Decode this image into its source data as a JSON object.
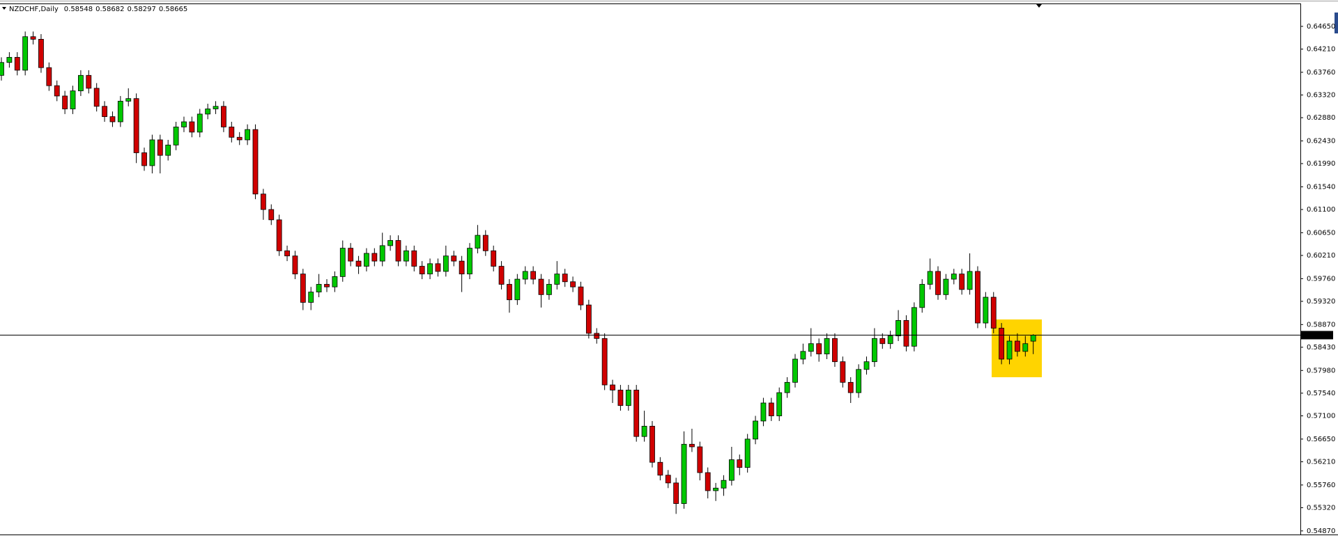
{
  "chart_data": {
    "type": "candlestick",
    "title": "NZDCHF,Daily",
    "up_color": "#00c800",
    "down_color": "#d00000",
    "ylim": [
      0.548,
      0.6508
    ],
    "yticks": [
      {
        "value": 0.6465,
        "label": "0.64650"
      },
      {
        "value": 0.6421,
        "label": "0.64210"
      },
      {
        "value": 0.6376,
        "label": "0.63760"
      },
      {
        "value": 0.6332,
        "label": "0.63320"
      },
      {
        "value": 0.6288,
        "label": "0.62880"
      },
      {
        "value": 0.6243,
        "label": "0.62430"
      },
      {
        "value": 0.6199,
        "label": "0.61990"
      },
      {
        "value": 0.6154,
        "label": "0.61540"
      },
      {
        "value": 0.611,
        "label": "0.61100"
      },
      {
        "value": 0.6065,
        "label": "0.60650"
      },
      {
        "value": 0.6021,
        "label": "0.60210"
      },
      {
        "value": 0.5976,
        "label": "0.59760"
      },
      {
        "value": 0.5932,
        "label": "0.59320"
      },
      {
        "value": 0.5887,
        "label": "0.58870"
      },
      {
        "value": 0.5843,
        "label": "0.58430"
      },
      {
        "value": 0.5798,
        "label": "0.57980"
      },
      {
        "value": 0.5754,
        "label": "0.57540"
      },
      {
        "value": 0.571,
        "label": "0.57100"
      },
      {
        "value": 0.5665,
        "label": "0.56650"
      },
      {
        "value": 0.5621,
        "label": "0.56210"
      },
      {
        "value": 0.5576,
        "label": "0.55760"
      },
      {
        "value": 0.5532,
        "label": "0.55320"
      },
      {
        "value": 0.5487,
        "label": "0.54870"
      }
    ],
    "open": [
      0.637,
      0.6395,
      0.6405,
      0.638,
      0.6445,
      0.644,
      0.6385,
      0.635,
      0.633,
      0.6305,
      0.634,
      0.637,
      0.6345,
      0.631,
      0.629,
      0.628,
      0.632,
      0.6325,
      0.622,
      0.6195,
      0.6245,
      0.6215,
      0.6235,
      0.627,
      0.628,
      0.626,
      0.6295,
      0.6305,
      0.631,
      0.627,
      0.625,
      0.6245,
      0.6265,
      0.614,
      0.611,
      0.609,
      0.603,
      0.602,
      0.5985,
      0.593,
      0.595,
      0.5965,
      0.596,
      0.598,
      0.6035,
      0.601,
      0.6,
      0.6025,
      0.601,
      0.604,
      0.605,
      0.601,
      0.603,
      0.6,
      0.5985,
      0.6005,
      0.599,
      0.602,
      0.601,
      0.5985,
      0.6035,
      0.606,
      0.603,
      0.6,
      0.5965,
      0.5935,
      0.5975,
      0.599,
      0.5975,
      0.5945,
      0.5965,
      0.5985,
      0.597,
      0.596,
      0.5925,
      0.587,
      0.586,
      0.577,
      0.576,
      0.573,
      0.576,
      0.567,
      0.569,
      0.562,
      0.5595,
      0.558,
      0.554,
      0.5655,
      0.565,
      0.56,
      0.5565,
      0.557,
      0.5585,
      0.5625,
      0.561,
      0.5665,
      0.57,
      0.5735,
      0.571,
      0.5755,
      0.5775,
      0.582,
      0.5835,
      0.585,
      0.583,
      0.586,
      0.5815,
      0.5775,
      0.5755,
      0.58,
      0.5815,
      0.586,
      0.585,
      0.5865,
      0.5895,
      0.5845,
      0.592,
      0.5965,
      0.599,
      0.5945,
      0.5975,
      0.5985,
      0.5955,
      0.599,
      0.589,
      0.594,
      0.588,
      0.582,
      0.5855,
      0.5835,
      0.58548
    ],
    "high": [
      0.6405,
      0.6415,
      0.6415,
      0.6455,
      0.6455,
      0.645,
      0.6395,
      0.636,
      0.634,
      0.635,
      0.638,
      0.638,
      0.6355,
      0.632,
      0.63,
      0.633,
      0.6345,
      0.6335,
      0.623,
      0.6255,
      0.6255,
      0.6245,
      0.628,
      0.629,
      0.629,
      0.6305,
      0.6315,
      0.632,
      0.632,
      0.628,
      0.626,
      0.6275,
      0.6275,
      0.615,
      0.612,
      0.61,
      0.604,
      0.603,
      0.5995,
      0.596,
      0.5985,
      0.5975,
      0.599,
      0.605,
      0.6045,
      0.602,
      0.6035,
      0.6035,
      0.6065,
      0.606,
      0.606,
      0.604,
      0.604,
      0.601,
      0.6015,
      0.6015,
      0.604,
      0.603,
      0.602,
      0.6045,
      0.608,
      0.607,
      0.604,
      0.601,
      0.5975,
      0.5985,
      0.6,
      0.6,
      0.5985,
      0.5975,
      0.601,
      0.5995,
      0.598,
      0.597,
      0.5935,
      0.588,
      0.587,
      0.578,
      0.577,
      0.577,
      0.577,
      0.572,
      0.57,
      0.563,
      0.5605,
      0.559,
      0.568,
      0.5685,
      0.566,
      0.561,
      0.558,
      0.5595,
      0.565,
      0.5635,
      0.5675,
      0.571,
      0.5745,
      0.5745,
      0.5765,
      0.5785,
      0.583,
      0.585,
      0.588,
      0.586,
      0.587,
      0.587,
      0.5825,
      0.5785,
      0.581,
      0.5825,
      0.588,
      0.587,
      0.5875,
      0.5915,
      0.5905,
      0.593,
      0.5975,
      0.6015,
      0.6,
      0.5985,
      0.5995,
      0.5995,
      0.6025,
      0.6,
      0.595,
      0.595,
      0.589,
      0.5865,
      0.587,
      0.5865,
      0.58682
    ],
    "low": [
      0.636,
      0.6385,
      0.637,
      0.637,
      0.643,
      0.6375,
      0.634,
      0.632,
      0.6295,
      0.6295,
      0.633,
      0.6335,
      0.63,
      0.628,
      0.627,
      0.627,
      0.631,
      0.62,
      0.6185,
      0.618,
      0.618,
      0.6205,
      0.6225,
      0.626,
      0.625,
      0.625,
      0.6285,
      0.6295,
      0.626,
      0.624,
      0.6235,
      0.6235,
      0.613,
      0.609,
      0.608,
      0.602,
      0.601,
      0.5975,
      0.5915,
      0.5915,
      0.594,
      0.595,
      0.595,
      0.597,
      0.6,
      0.5985,
      0.599,
      0.6,
      0.6,
      0.603,
      0.6,
      0.6,
      0.599,
      0.5975,
      0.5975,
      0.598,
      0.598,
      0.6,
      0.595,
      0.5975,
      0.6025,
      0.602,
      0.599,
      0.5955,
      0.591,
      0.5925,
      0.5965,
      0.5965,
      0.592,
      0.5935,
      0.5955,
      0.596,
      0.595,
      0.5915,
      0.586,
      0.585,
      0.576,
      0.5735,
      0.572,
      0.572,
      0.566,
      0.566,
      0.561,
      0.5585,
      0.557,
      0.552,
      0.553,
      0.564,
      0.5585,
      0.555,
      0.5545,
      0.5555,
      0.5575,
      0.5595,
      0.56,
      0.5655,
      0.569,
      0.57,
      0.57,
      0.5745,
      0.5765,
      0.581,
      0.5825,
      0.5815,
      0.582,
      0.5805,
      0.5765,
      0.5735,
      0.5745,
      0.579,
      0.5805,
      0.584,
      0.584,
      0.5855,
      0.5835,
      0.5835,
      0.591,
      0.5955,
      0.5935,
      0.5935,
      0.5965,
      0.5945,
      0.5945,
      0.588,
      0.588,
      0.587,
      0.581,
      0.581,
      0.5825,
      0.5825,
      0.58297
    ],
    "close": [
      0.6395,
      0.6405,
      0.638,
      0.6445,
      0.644,
      0.6385,
      0.635,
      0.633,
      0.6305,
      0.634,
      0.637,
      0.6345,
      0.631,
      0.629,
      0.628,
      0.632,
      0.6325,
      0.622,
      0.6195,
      0.6245,
      0.6215,
      0.6235,
      0.627,
      0.628,
      0.626,
      0.6295,
      0.6305,
      0.631,
      0.627,
      0.625,
      0.6245,
      0.6265,
      0.614,
      0.611,
      0.609,
      0.603,
      0.602,
      0.5985,
      0.593,
      0.595,
      0.5965,
      0.596,
      0.598,
      0.6035,
      0.601,
      0.6,
      0.6025,
      0.601,
      0.604,
      0.605,
      0.601,
      0.603,
      0.6,
      0.5985,
      0.6005,
      0.599,
      0.602,
      0.601,
      0.5985,
      0.6035,
      0.606,
      0.603,
      0.6,
      0.5965,
      0.5935,
      0.5975,
      0.599,
      0.5975,
      0.5945,
      0.5965,
      0.5985,
      0.597,
      0.596,
      0.5925,
      0.587,
      0.586,
      0.577,
      0.576,
      0.573,
      0.576,
      0.567,
      0.569,
      0.562,
      0.5595,
      0.558,
      0.554,
      0.5655,
      0.565,
      0.56,
      0.5565,
      0.557,
      0.5585,
      0.5625,
      0.561,
      0.5665,
      0.57,
      0.5735,
      0.571,
      0.5755,
      0.5775,
      0.582,
      0.5835,
      0.585,
      0.583,
      0.586,
      0.5815,
      0.5775,
      0.5755,
      0.58,
      0.5815,
      0.586,
      0.585,
      0.5865,
      0.5895,
      0.5845,
      0.592,
      0.5965,
      0.599,
      0.5945,
      0.5975,
      0.5985,
      0.5955,
      0.599,
      0.589,
      0.594,
      0.588,
      0.582,
      0.5855,
      0.5835,
      0.585,
      0.58665
    ]
  }
}
